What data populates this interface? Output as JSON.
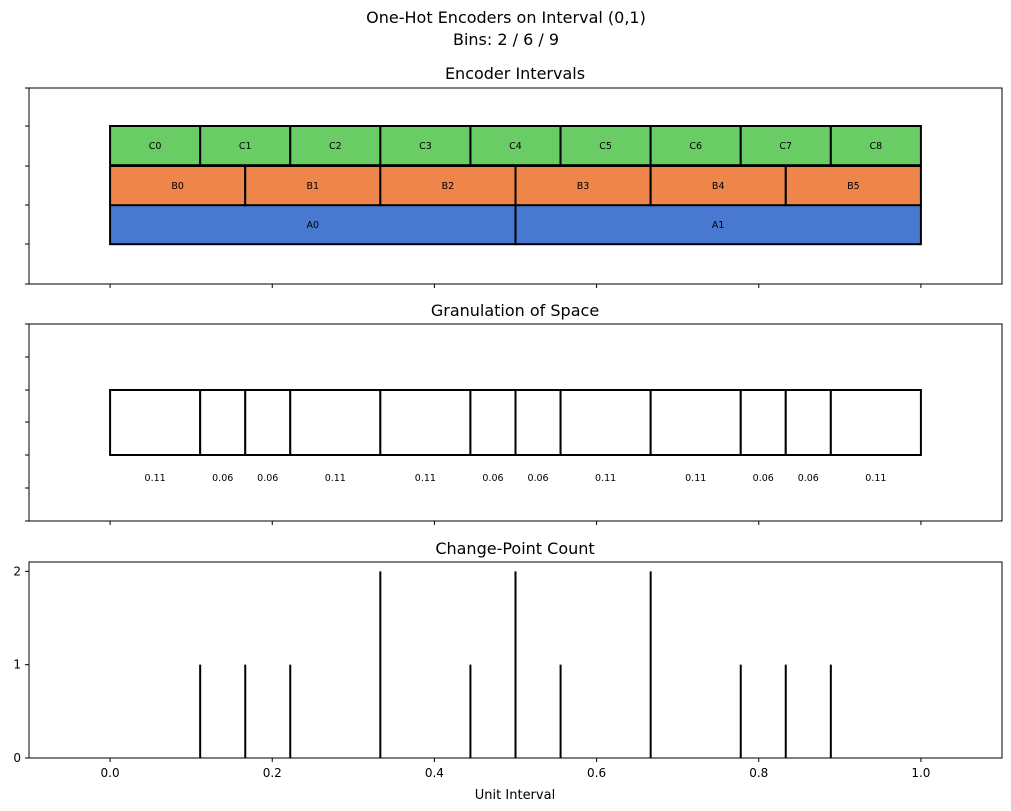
{
  "figure": {
    "title_line1": "One-Hot Encoders on Interval (0,1)",
    "title_line2": "Bins: 2 / 6 / 9"
  },
  "chart_data": [
    {
      "type": "bar",
      "title": "Encoder Intervals",
      "xlim": [
        -0.1,
        1.1
      ],
      "rows": [
        {
          "name": "A",
          "color": "#4878CF",
          "bins": 2,
          "labels": [
            "A0",
            "A1"
          ]
        },
        {
          "name": "B",
          "color": "#EE854A",
          "bins": 6,
          "labels": [
            "B0",
            "B1",
            "B2",
            "B3",
            "B4",
            "B5"
          ]
        },
        {
          "name": "C",
          "color": "#6ACC64",
          "bins": 9,
          "labels": [
            "C0",
            "C1",
            "C2",
            "C3",
            "C4",
            "C5",
            "C6",
            "C7",
            "C8"
          ]
        }
      ]
    },
    {
      "type": "bar",
      "title": "Granulation of Space",
      "xlim": [
        -0.1,
        1.1
      ],
      "boundaries": [
        0,
        0.1111,
        0.1667,
        0.2222,
        0.3333,
        0.4444,
        0.5,
        0.5556,
        0.6667,
        0.7778,
        0.8333,
        0.8889,
        1.0
      ],
      "width_labels": [
        "0.11",
        "0.06",
        "0.06",
        "0.11",
        "0.11",
        "0.06",
        "0.06",
        "0.11",
        "0.11",
        "0.06",
        "0.06",
        "0.11"
      ]
    },
    {
      "type": "bar",
      "title": "Change-Point Count",
      "xlabel": "Unit Interval",
      "xlim": [
        -0.1,
        1.1
      ],
      "ylim": [
        0,
        2.1
      ],
      "x": [
        0.1111,
        0.1667,
        0.2222,
        0.3333,
        0.4444,
        0.5,
        0.5556,
        0.6667,
        0.7778,
        0.8333,
        0.8889
      ],
      "y": [
        1,
        1,
        1,
        2,
        1,
        2,
        1,
        2,
        1,
        1,
        1
      ],
      "xticks": [
        "0.0",
        "0.2",
        "0.4",
        "0.6",
        "0.8",
        "1.0"
      ],
      "yticks": [
        "0",
        "1",
        "2"
      ]
    }
  ]
}
